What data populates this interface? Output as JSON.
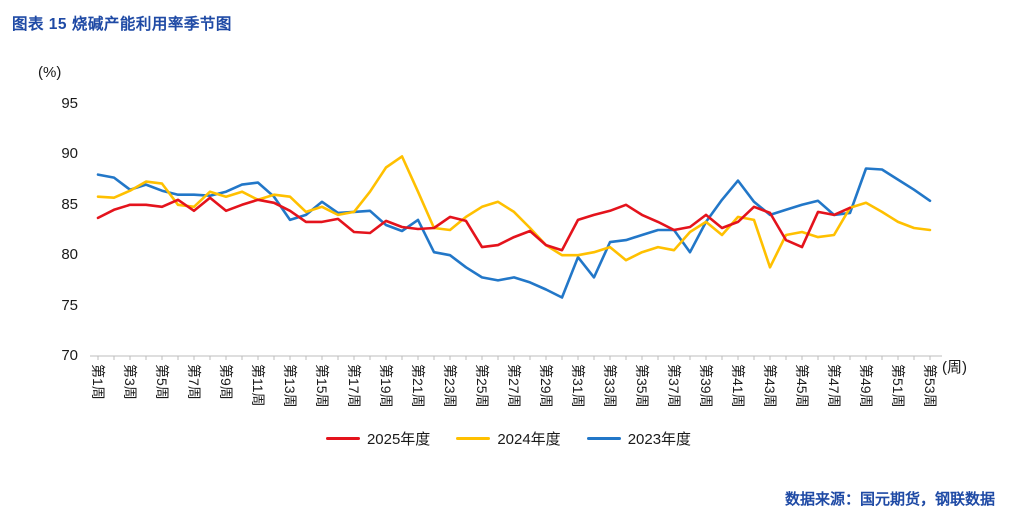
{
  "title": "图表  15 烧碱产能利用率季节图",
  "source_note": "数据来源：国元期货，钢联数据",
  "colors": {
    "accent_blue": "#1F4AA5",
    "axis_line": "#c9c9c9",
    "tick_mark": "#bdbdbd"
  },
  "chart_data": {
    "type": "line",
    "title": "烧碱产能利用率季节图",
    "ylabel": "(%)",
    "xlabel": "(周)",
    "ylim": [
      70,
      95
    ],
    "yticks": [
      95,
      90,
      85,
      80,
      75,
      70
    ],
    "weeks": 53,
    "grid": false,
    "legend_position": "bottom",
    "x_tick_labels": [
      "第1周",
      "第3周",
      "第5周",
      "第7周",
      "第9周",
      "第11周",
      "第13周",
      "第15周",
      "第17周",
      "第19周",
      "第21周",
      "第23周",
      "第25周",
      "第27周",
      "第29周",
      "第31周",
      "第33周",
      "第35周",
      "第37周",
      "第39周",
      "第41周",
      "第43周",
      "第45周",
      "第47周",
      "第49周",
      "第51周",
      "第53周"
    ],
    "series": [
      {
        "name": "2025年度",
        "color": "#E4131C",
        "values": [
          83.7,
          84.5,
          85.0,
          85.0,
          84.8,
          85.5,
          84.4,
          85.7,
          84.4,
          85.0,
          85.5,
          85.2,
          84.4,
          83.3,
          83.3,
          83.6,
          82.3,
          82.2,
          83.4,
          82.8,
          82.6,
          82.7,
          83.8,
          83.4,
          80.8,
          81.0,
          81.8,
          82.4,
          81.0,
          80.5,
          83.5,
          84.0,
          84.4,
          85.0,
          84.0,
          83.3,
          82.5,
          82.8,
          84.0,
          82.7,
          83.3,
          84.8,
          84.2,
          81.5,
          80.8,
          84.3,
          84.0,
          84.7
        ]
      },
      {
        "name": "2024年度",
        "color": "#FFC000",
        "values": [
          85.8,
          85.7,
          86.4,
          87.3,
          87.1,
          85.0,
          84.8,
          86.3,
          85.8,
          86.3,
          85.5,
          86.0,
          85.8,
          84.3,
          84.8,
          84.0,
          84.3,
          86.3,
          88.7,
          89.8,
          86.3,
          82.7,
          82.5,
          83.8,
          84.8,
          85.3,
          84.3,
          82.7,
          81.0,
          80.0,
          80.0,
          80.3,
          80.8,
          79.5,
          80.3,
          80.8,
          80.5,
          82.3,
          83.3,
          82.0,
          83.8,
          83.5,
          78.8,
          82.0,
          82.3,
          81.8,
          82.0,
          84.7,
          85.2,
          84.3,
          83.3,
          82.7,
          82.5
        ]
      },
      {
        "name": "2023年度",
        "color": "#2277C8",
        "values": [
          88.0,
          87.7,
          86.5,
          87.0,
          86.4,
          86.0,
          86.0,
          85.9,
          86.3,
          87.0,
          87.2,
          85.8,
          83.5,
          84.0,
          85.3,
          84.2,
          84.3,
          84.4,
          83.0,
          82.4,
          83.5,
          80.3,
          80.0,
          78.8,
          77.8,
          77.5,
          77.8,
          77.3,
          76.6,
          75.8,
          79.8,
          77.8,
          81.3,
          81.5,
          82.0,
          82.5,
          82.5,
          80.3,
          83.3,
          85.5,
          87.4,
          85.3,
          84.0,
          84.5,
          85.0,
          85.4,
          84.0,
          84.2,
          88.6,
          88.5,
          87.5,
          86.5,
          85.4
        ]
      }
    ]
  }
}
